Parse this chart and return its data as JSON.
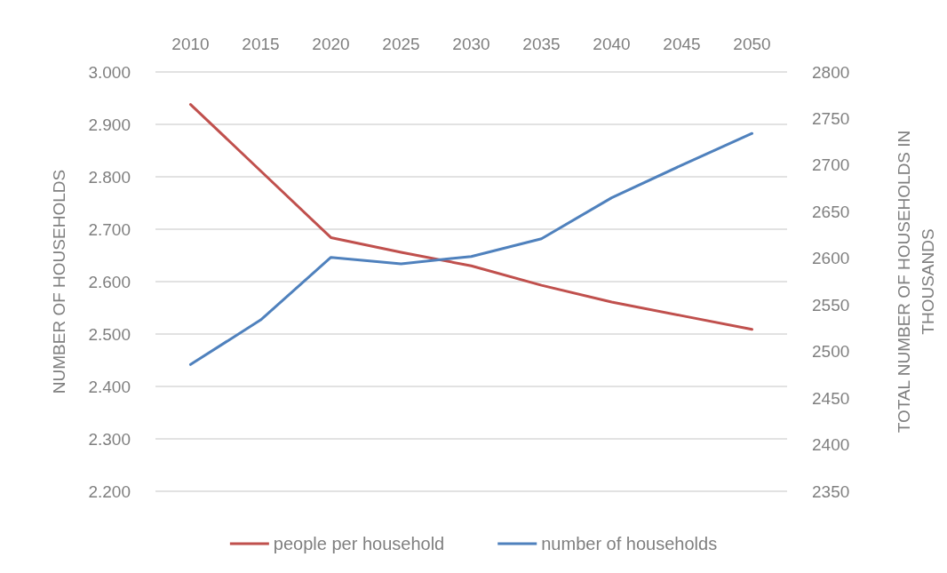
{
  "chart_data": {
    "type": "line",
    "categories": [
      "2010",
      "2015",
      "2020",
      "2025",
      "2030",
      "2035",
      "2040",
      "2045",
      "2050"
    ],
    "ylabel": "NUMBER OF HOUSEHOLDS",
    "y2label": "TOTAL NUMBER OF HOUSEHOLDS IN THOUSANDS",
    "series": [
      {
        "name": "people per household",
        "color": "#c0504d",
        "values": [
          2.938,
          2.811,
          2.684,
          2.656,
          2.63,
          2.593,
          2.561,
          2.535,
          2.509
        ]
      },
      {
        "name": "number of households",
        "color": "#4f81bd",
        "axis": "y2",
        "values": [
          2486,
          2534,
          2601,
          2594,
          2602,
          2621,
          2665,
          2700,
          2734
        ]
      }
    ],
    "ylim": [
      2.2,
      3
    ],
    "yticks": [
      {
        "value": 2.2,
        "label": "2.200"
      },
      {
        "value": 2.3,
        "label": "2.300"
      },
      {
        "value": 2.4,
        "label": "2.400"
      },
      {
        "value": 2.5,
        "label": "2.500"
      },
      {
        "value": 2.6,
        "label": "2.600"
      },
      {
        "value": 2.7,
        "label": "2.700"
      },
      {
        "value": 2.8,
        "label": "2.800"
      },
      {
        "value": 2.9,
        "label": "2.900"
      },
      {
        "value": 3,
        "label": "3.000"
      }
    ],
    "y2lim": [
      2350,
      2800
    ],
    "y2ticks": [
      2350,
      2400,
      2450,
      2500,
      2550,
      2600,
      2650,
      2700,
      2750,
      2800
    ],
    "grid": "y",
    "legend": "bottom",
    "marker": "none",
    "line_style": "solid"
  }
}
